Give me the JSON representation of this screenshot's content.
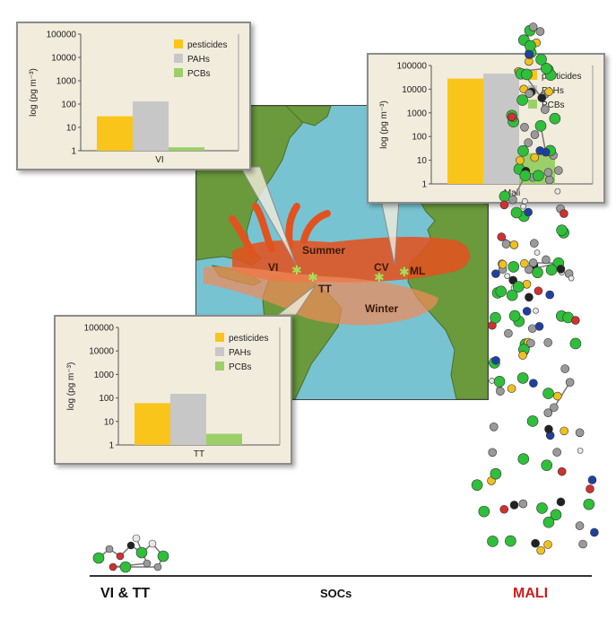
{
  "chart_data": [
    {
      "type": "bar",
      "site": "VI",
      "xlabel": "VI",
      "ylabel": "log (pg m⁻³)",
      "yscale": "log",
      "ylim": [
        1,
        100000
      ],
      "yticks": [
        "100000",
        "10000",
        "1000",
        "100",
        "10",
        "1"
      ],
      "legend_position": "top-right",
      "series": [
        {
          "name": "pesticides",
          "value": 30,
          "color": "#f9c51a"
        },
        {
          "name": "PAHs",
          "value": 130,
          "color": "#c7c7c7"
        },
        {
          "name": "PCBs",
          "value": 1.4,
          "color": "#9bd069"
        }
      ]
    },
    {
      "type": "bar",
      "site": "Mali",
      "xlabel": "Mali",
      "ylabel": "log (pg m⁻³)",
      "yscale": "log",
      "ylim": [
        1,
        100000
      ],
      "yticks": [
        "100000",
        "10000",
        "1000",
        "100",
        "10",
        "1"
      ],
      "legend_position": "top-right",
      "series": [
        {
          "name": "pesticides",
          "value": 28000,
          "color": "#f9c51a"
        },
        {
          "name": "PAHs",
          "value": 45000,
          "color": "#c7c7c7"
        },
        {
          "name": "PCBs",
          "value": 20,
          "color": "#9bd069"
        }
      ]
    },
    {
      "type": "bar",
      "site": "TT",
      "xlabel": "TT",
      "ylabel": "log (pg m⁻³)",
      "yscale": "log",
      "ylim": [
        1,
        100000
      ],
      "yticks": [
        "100000",
        "10000",
        "1000",
        "100",
        "10",
        "1"
      ],
      "legend_position": "top-right",
      "series": [
        {
          "name": "pesticides",
          "value": 60,
          "color": "#f9c51a"
        },
        {
          "name": "PAHs",
          "value": 150,
          "color": "#c7c7c7"
        },
        {
          "name": "PCBs",
          "value": 3,
          "color": "#9bd069"
        }
      ]
    }
  ],
  "map": {
    "labels": {
      "summer": "Summer",
      "winter": "Winter",
      "vi": "VI",
      "tt": "TT",
      "cv": "CV",
      "ml": "ML"
    },
    "colors": {
      "ocean": "#78c3d2",
      "land": "#6a9a3c",
      "plume": "#e2521f",
      "plume_light": "#f08a5a",
      "star": "#a4e05a"
    }
  },
  "bottom": {
    "left_label": "VI & TT",
    "center_label": "SOCs",
    "right_label": "MALI",
    "right_color": "#d01c1c"
  }
}
